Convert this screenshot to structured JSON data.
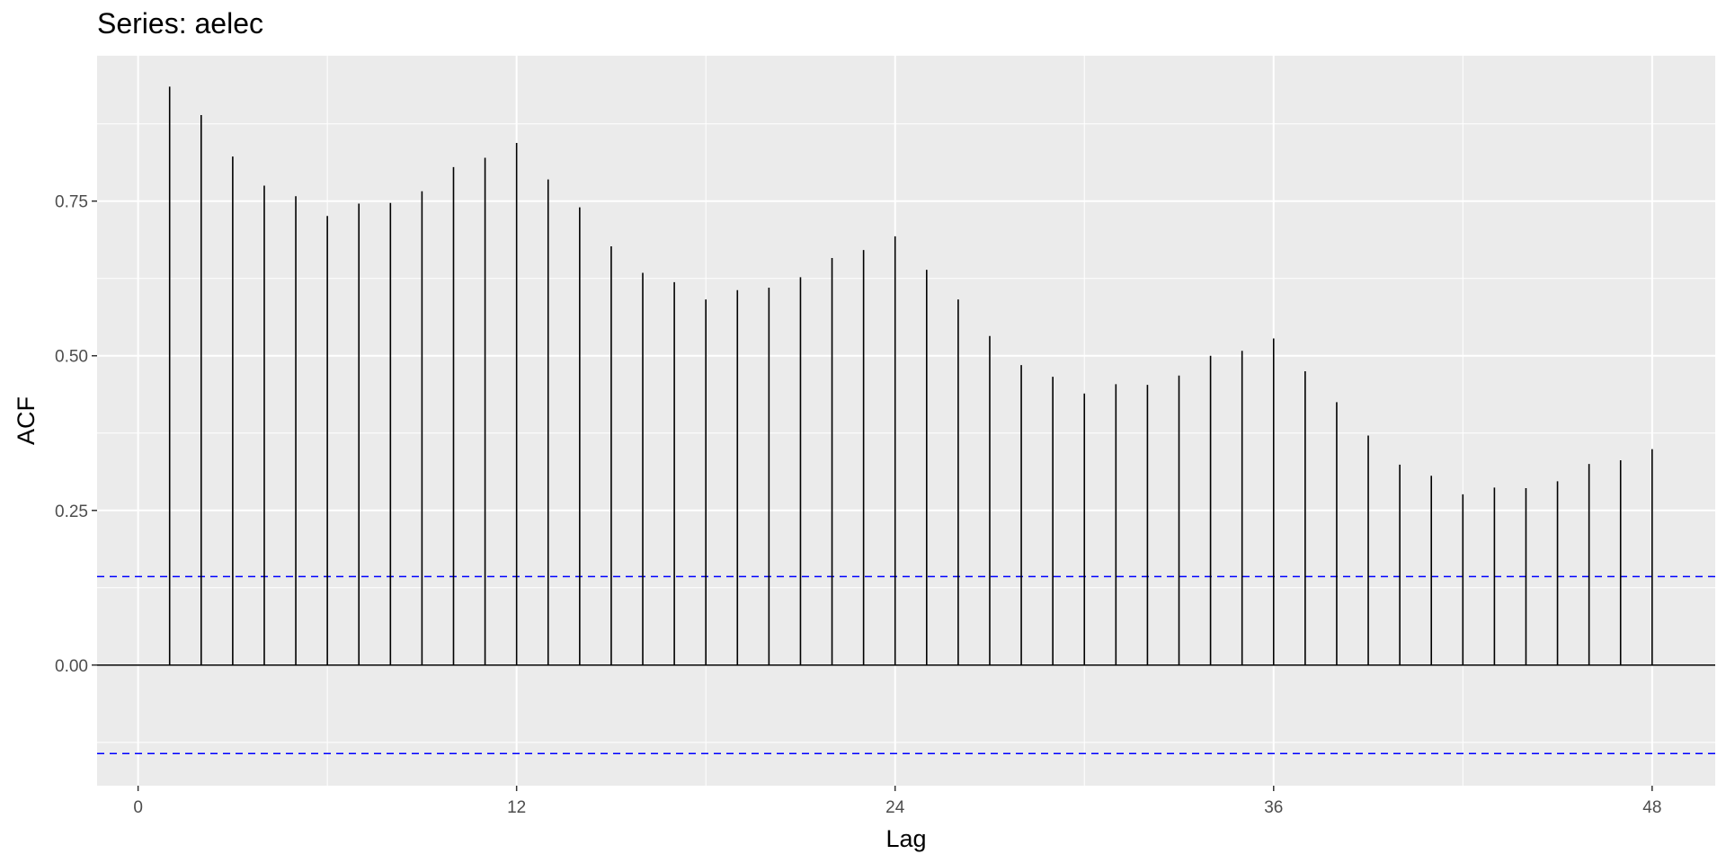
{
  "chart_data": {
    "type": "bar",
    "subtype": "acf",
    "title": "Series: aelec",
    "xlabel": "Lag",
    "ylabel": "ACF",
    "xlim": [
      -1.3,
      50
    ],
    "ylim": [
      -0.195,
      0.985
    ],
    "x_ticks": [
      0,
      12,
      24,
      36,
      48
    ],
    "x_tick_labels": [
      "0",
      "12",
      "24",
      "36",
      "48"
    ],
    "y_ticks": [
      0,
      0.25,
      0.5,
      0.75
    ],
    "y_tick_labels": [
      "0.00",
      "0.25",
      "0.50",
      "0.75"
    ],
    "lags": [
      1,
      2,
      3,
      4,
      5,
      6,
      7,
      8,
      9,
      10,
      11,
      12,
      13,
      14,
      15,
      16,
      17,
      18,
      19,
      20,
      21,
      22,
      23,
      24,
      25,
      26,
      27,
      28,
      29,
      30,
      31,
      32,
      33,
      34,
      35,
      36,
      37,
      38,
      39,
      40,
      41,
      42,
      43,
      44,
      45,
      46,
      47,
      48
    ],
    "values": [
      0.935,
      0.889,
      0.822,
      0.775,
      0.758,
      0.726,
      0.746,
      0.747,
      0.766,
      0.805,
      0.82,
      0.844,
      0.785,
      0.74,
      0.677,
      0.634,
      0.619,
      0.591,
      0.606,
      0.61,
      0.627,
      0.658,
      0.671,
      0.693,
      0.639,
      0.591,
      0.532,
      0.485,
      0.466,
      0.439,
      0.454,
      0.453,
      0.468,
      0.5,
      0.508,
      0.528,
      0.475,
      0.425,
      0.371,
      0.324,
      0.306,
      0.276,
      0.287,
      0.286,
      0.297,
      0.325,
      0.331,
      0.349
    ],
    "conf_limits": [
      0.143,
      -0.143
    ],
    "grid": true,
    "legend": "none",
    "colors": {
      "panel": "#ebebeb",
      "grid": "#ffffff",
      "bars": "#000000",
      "conf": "#0000ff"
    }
  }
}
